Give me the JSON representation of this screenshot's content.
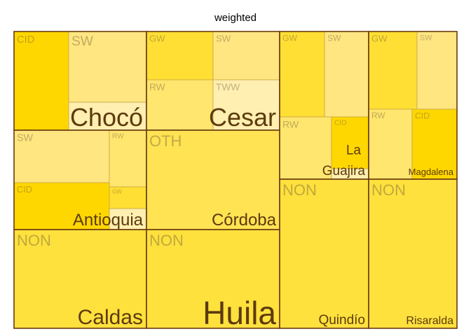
{
  "chart_data": {
    "type": "treemap",
    "title": "weighted",
    "colors": {
      "CID": "#FFD700",
      "GW": "#FFDF33",
      "NON": "#FFE13D",
      "OTH": "#FFE352",
      "SW": "#FFE680",
      "RW": "#FFE66E",
      "TWW": "#FFEFB0",
      "border": "#6B3A0F",
      "group_text": "#5C3A0E",
      "sub_text": "#6B5A3A"
    },
    "groups": [
      {
        "name": "Chocó",
        "items": [
          {
            "label": "CID",
            "value": 12.9
          },
          {
            "label": "SW",
            "value": 13.0
          },
          {
            "label": "",
            "value": 3.3
          }
        ]
      },
      {
        "name": "Cesar",
        "items": [
          {
            "label": "GW",
            "value": 7.1
          },
          {
            "label": "SW",
            "value": 7.2
          },
          {
            "label": "RW",
            "value": 5.4
          },
          {
            "label": "TWW",
            "value": 5.4
          }
        ]
      },
      {
        "name": "Antioquia",
        "items": [
          {
            "label": "SW",
            "value": 11.0
          },
          {
            "label": "RW",
            "value": 2.9
          },
          {
            "label": "CID",
            "value": 8.6
          },
          {
            "label": "GW",
            "value": 1.3
          },
          {
            "label": "",
            "value": 1.1
          }
        ]
      },
      {
        "name": "Córdoba",
        "items": [
          {
            "label": "OTH",
            "value": 27.0
          }
        ]
      },
      {
        "name": "Caldas",
        "items": [
          {
            "label": "NON",
            "value": 31.7
          }
        ]
      },
      {
        "name": "Huila",
        "items": [
          {
            "label": "NON",
            "value": 31.4
          }
        ]
      },
      {
        "name": "La Guajira",
        "items": [
          {
            "label": "GW",
            "value": 7.9
          },
          {
            "label": "SW",
            "value": 7.9
          },
          {
            "label": "RW",
            "value": 6.5
          },
          {
            "label": "CID",
            "value": 3.7
          },
          {
            "label": "",
            "value": 0.6
          }
        ]
      },
      {
        "name": "Quindío",
        "items": [
          {
            "label": "NON",
            "value": 27.0
          }
        ]
      },
      {
        "name": "Magdalena",
        "items": [
          {
            "label": "GW",
            "value": 7.1
          },
          {
            "label": "SW",
            "value": 5.1
          },
          {
            "label": "RW",
            "value": 6.2
          },
          {
            "label": "CID",
            "value": 6.0
          }
        ]
      },
      {
        "name": "Risaralda",
        "items": [
          {
            "label": "NON",
            "value": 27.0
          }
        ]
      }
    ]
  }
}
